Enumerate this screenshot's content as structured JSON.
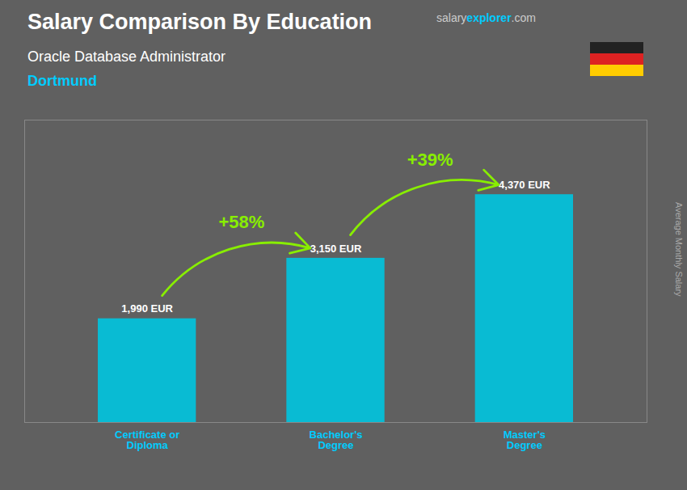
{
  "chart_data": {
    "type": "bar",
    "title": "Salary Comparison By Education",
    "subtitle": [
      "Oracle Database Administrator",
      "Dortmund"
    ],
    "watermark": [
      "salary",
      "explorer",
      ".com"
    ],
    "ylabel": "Average Monthly Salary",
    "categories": [
      "Certificate or\nDiploma",
      "Bachelor's\nDegree",
      "Master's\nDegree"
    ],
    "values": [
      1990,
      3150,
      4370
    ],
    "value_labels": [
      "1,990 EUR",
      "3,150 EUR",
      "4,370 EUR"
    ],
    "data_labels": true,
    "annotations": [
      "+58%",
      "+39%"
    ],
    "color": "#00c5e0",
    "ylim": [
      0,
      5800
    ],
    "tick_labels": "x",
    "grid": false
  }
}
